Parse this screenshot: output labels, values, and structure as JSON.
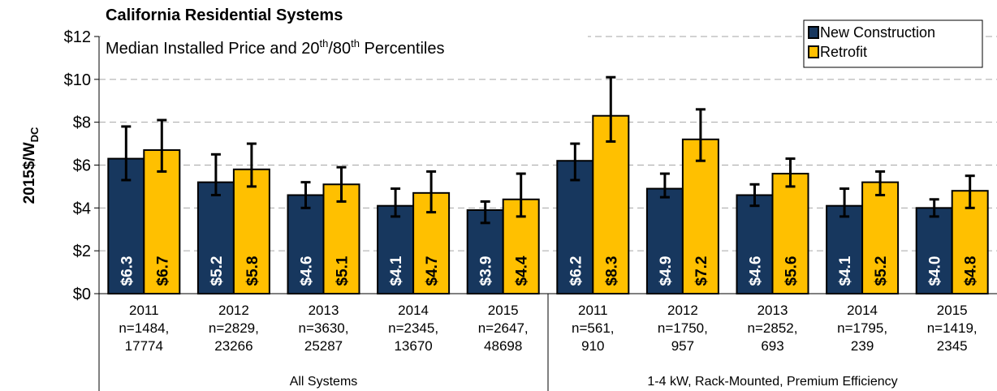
{
  "chart_data": {
    "type": "bar",
    "title": "California Residential Systems",
    "subtitle": [
      "Median Installed Price and 20",
      "th",
      "/80",
      "th",
      " Percentiles"
    ],
    "ylabel": [
      "2015$/W",
      "DC"
    ],
    "categories": [
      [
        "2011",
        "n=1484,",
        "17774"
      ],
      [
        "2012",
        "n=2829,",
        "23266"
      ],
      [
        "2013",
        "n=3630,",
        "25287"
      ],
      [
        "2014",
        "n=2345,",
        "13670"
      ],
      [
        "2015",
        "n=2647,",
        "48698"
      ],
      [
        "2011",
        "n=561,",
        "910"
      ],
      [
        "2012",
        "n=1750,",
        "957"
      ],
      [
        "2013",
        "n=2852,",
        "693"
      ],
      [
        "2014",
        "n=1795,",
        "239"
      ],
      [
        "2015",
        "n=1419,",
        "2345"
      ]
    ],
    "groups": [
      "All Systems",
      "1-4 kW, Rack-Mounted, Premium Efficiency"
    ],
    "series": [
      {
        "name": "New Construction",
        "color": "#17375e",
        "values": [
          6.3,
          5.2,
          4.6,
          4.1,
          3.9,
          6.2,
          4.9,
          4.6,
          4.1,
          4.0
        ],
        "value_labels": [
          "$6.3",
          "$5.2",
          "$4.6",
          "$4.1",
          "$3.9",
          "$6.2",
          "$4.9",
          "$4.6",
          "$4.1",
          "$4.0"
        ],
        "low": [
          5.3,
          4.6,
          4.0,
          3.6,
          3.3,
          5.3,
          4.5,
          4.1,
          3.6,
          3.6
        ],
        "high": [
          7.8,
          6.5,
          5.2,
          4.9,
          4.3,
          7.0,
          5.6,
          5.1,
          4.9,
          4.4
        ]
      },
      {
        "name": "Retrofit",
        "color": "#ffc000",
        "values": [
          6.7,
          5.8,
          5.1,
          4.7,
          4.4,
          8.3,
          7.2,
          5.6,
          5.2,
          4.8
        ],
        "value_labels": [
          "$6.7",
          "$5.8",
          "$5.1",
          "$4.7",
          "$4.4",
          "$8.3",
          "$7.2",
          "$5.6",
          "$5.2",
          "$4.8"
        ],
        "low": [
          5.7,
          5.0,
          4.3,
          3.8,
          3.6,
          7.1,
          6.2,
          5.0,
          4.6,
          4.0
        ],
        "high": [
          8.1,
          7.0,
          5.9,
          5.7,
          5.6,
          10.1,
          8.6,
          6.3,
          5.7,
          5.5
        ]
      }
    ],
    "ylim": [
      0,
      12
    ],
    "yticks": [
      {
        "value": 0,
        "label": "$0"
      },
      {
        "value": 2,
        "label": "$2"
      },
      {
        "value": 4,
        "label": "$4"
      },
      {
        "value": 6,
        "label": "$6"
      },
      {
        "value": 8,
        "label": "$8"
      },
      {
        "value": 10,
        "label": "$10"
      },
      {
        "value": 12,
        "label": "$12"
      }
    ],
    "grid": true,
    "legend": "upper right"
  }
}
